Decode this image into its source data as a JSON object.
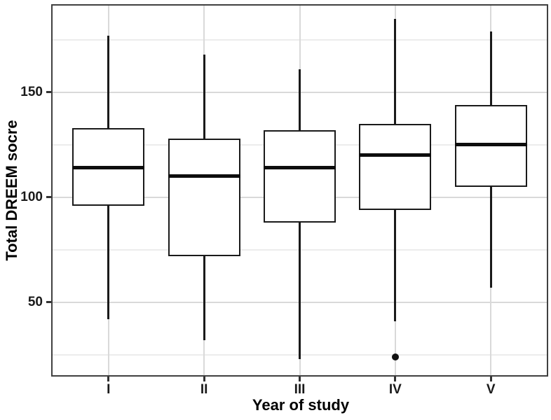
{
  "chart_data": {
    "type": "boxplot",
    "title": "",
    "xlabel": "Year of study",
    "ylabel": "Total DREEM socre",
    "categories": [
      "I",
      "II",
      "III",
      "IV",
      "V"
    ],
    "y_axis": {
      "ticks": [
        50,
        100,
        150
      ],
      "minor_ticks": [
        25,
        75,
        125,
        175
      ],
      "range": [
        14.6,
        191.9
      ]
    },
    "grid": {
      "horizontal_major": true,
      "horizontal_minor": true,
      "vertical_major_at_categories": true
    },
    "legend_position": "none",
    "series": [
      {
        "category": "I",
        "whisker_low": 42,
        "q1": 96,
        "median": 114,
        "q3": 133,
        "whisker_high": 177,
        "outliers": []
      },
      {
        "category": "II",
        "whisker_low": 32,
        "q1": 72,
        "median": 110,
        "q3": 128,
        "whisker_high": 168,
        "outliers": []
      },
      {
        "category": "III",
        "whisker_low": 23,
        "q1": 88,
        "median": 114,
        "q3": 132,
        "whisker_high": 161,
        "outliers": []
      },
      {
        "category": "IV",
        "whisker_low": 41,
        "q1": 94,
        "median": 120,
        "q3": 135,
        "whisker_high": 185,
        "outliers": [
          24
        ]
      },
      {
        "category": "V",
        "whisker_low": 57,
        "q1": 105,
        "median": 125,
        "q3": 144,
        "whisker_high": 179,
        "outliers": []
      }
    ],
    "colors": {
      "box_stroke": "#1a1a1a",
      "box_fill": "#ffffff",
      "median": "#0d0d0d",
      "outlier": "#111111",
      "grid_major": "#d9d9d9",
      "grid_minor": "#ececec",
      "panel_border": "#404040",
      "text": "#1a1a1a",
      "background": "#ffffff"
    }
  }
}
